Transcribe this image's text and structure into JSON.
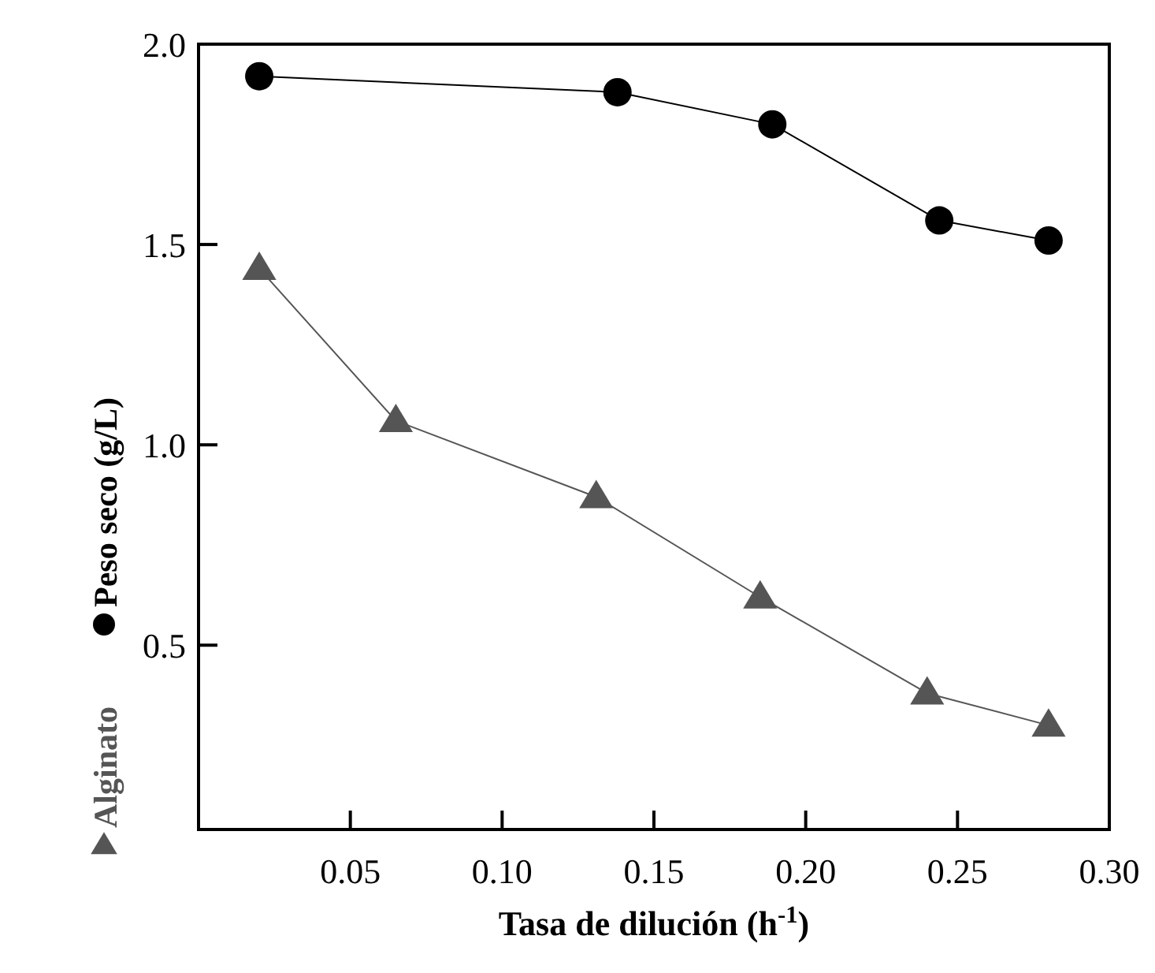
{
  "chart_data": {
    "type": "line",
    "xlabel": "Tasa de dilución (h$^{-1}$)",
    "xlim": [
      0,
      0.3
    ],
    "xticks": [
      {
        "value": 0.05,
        "label": "0.05"
      },
      {
        "value": 0.1,
        "label": "0.10"
      },
      {
        "value": 0.15,
        "label": "0.15"
      },
      {
        "value": 0.2,
        "label": "0.20"
      },
      {
        "value": 0.25,
        "label": "0.25"
      },
      {
        "value": 0.3,
        "label": "0.30"
      }
    ],
    "ylim": [
      0.04,
      2.0
    ],
    "yticks": [
      {
        "value": 0.5,
        "label": "0.5"
      },
      {
        "value": 1,
        "label": "1.0"
      },
      {
        "value": 1.5,
        "label": "1.5"
      },
      {
        "value": 2,
        "label": "2.0"
      }
    ],
    "legend": "left",
    "grid": false,
    "series": [
      {
        "name": "Peso seco (g/L)",
        "color": "#000000",
        "marker": "circle",
        "x": [
          0.02,
          0.138,
          0.189,
          0.244,
          0.28
        ],
        "values": [
          1.92,
          1.88,
          1.8,
          1.56,
          1.51
        ]
      },
      {
        "name": "Alginato",
        "color": "#555555",
        "marker": "triangle",
        "x": [
          0.02,
          0.065,
          0.131,
          0.185,
          0.24,
          0.28
        ],
        "values": [
          1.44,
          1.06,
          0.87,
          0.62,
          0.38,
          0.3
        ]
      }
    ]
  }
}
